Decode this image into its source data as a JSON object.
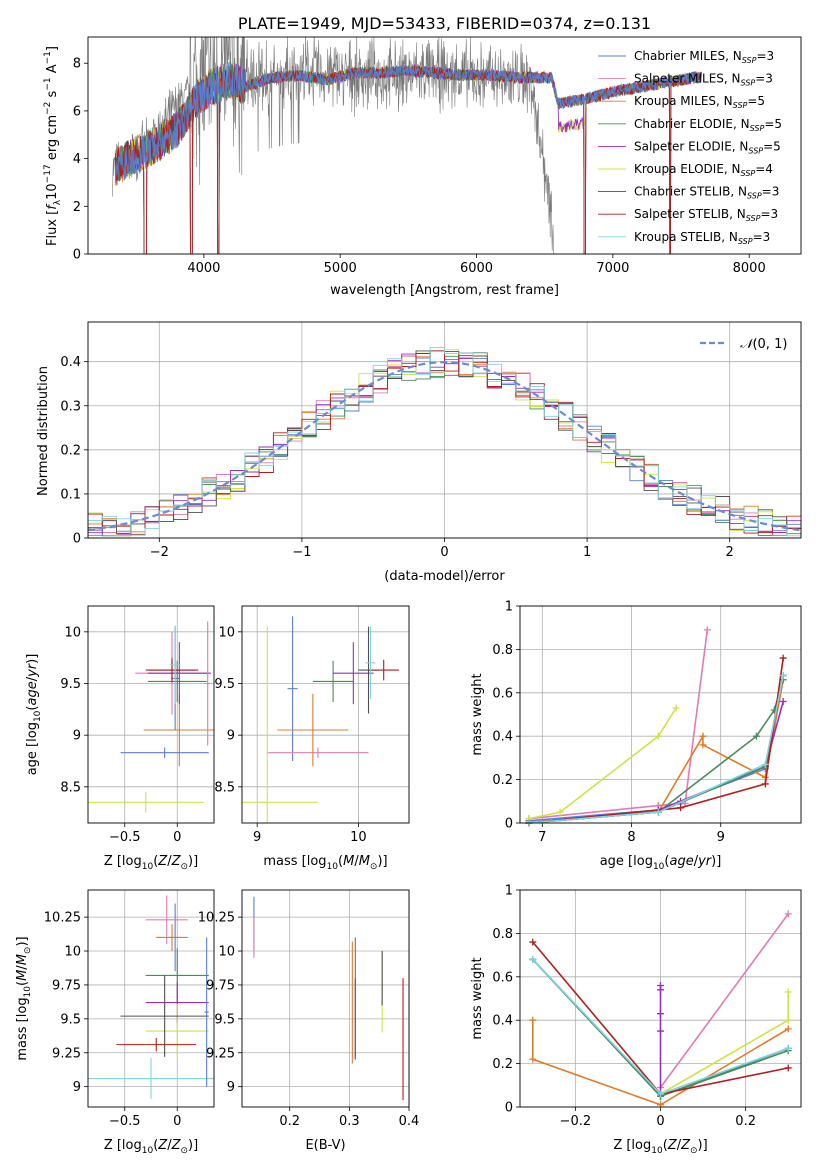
{
  "colors": [
    "#5b7fd0",
    "#e07bb5",
    "#e07b2a",
    "#4b8a5e",
    "#9a2fb5",
    "#cfe24a",
    "#505050",
    "#b01e1e",
    "#7ed3de"
  ],
  "chart_data": [
    {
      "id": "spectrum",
      "type": "line",
      "title": "PLATE=1949, MJD=53433, FIBERID=0374, z=0.131",
      "xlabel": "wavelength [Angstrom, rest frame]",
      "ylabel": "Flux [f_λ10^-17 erg cm^-2 s^-1 A^-1]",
      "xlim": [
        3150,
        8380
      ],
      "ylim": [
        0,
        9.1
      ],
      "xticks": [
        4000,
        5000,
        6000,
        7000,
        8000
      ],
      "yticks": [
        0,
        2,
        4,
        6,
        8
      ],
      "grid": false,
      "legend_position": "top-right",
      "legend": [
        "Chabrier MILES, N_SSP=3",
        "Salpeter MILES, N_SSP=3",
        "Kroupa MILES, N_SSP=5",
        "Chabrier ELODIE, N_SSP=5",
        "Salpeter ELODIE, N_SSP=5",
        "Kroupa ELODIE, N_SSP=4",
        "Chabrier STELIB, N_SSP=3",
        "Salpeter STELIB, N_SSP=3",
        "Kroupa STELIB, N_SSP=3"
      ],
      "model_continuum": {
        "x": [
          3350,
          3450,
          3550,
          3650,
          3800,
          3950,
          4050,
          4200,
          4300,
          4500,
          4700,
          4900,
          5100,
          5300,
          5500,
          5700,
          5900,
          6100,
          6300,
          6550,
          6600,
          6800,
          7000,
          7200,
          7400,
          7600
        ],
        "y": [
          3.6,
          4.0,
          4.3,
          4.6,
          5.2,
          6.5,
          7.0,
          7.3,
          7.0,
          7.4,
          7.5,
          7.3,
          7.6,
          7.6,
          7.7,
          7.6,
          7.5,
          7.5,
          7.4,
          7.4,
          6.3,
          6.5,
          6.8,
          7.0,
          7.2,
          7.4
        ]
      },
      "data_spectrum": {
        "x": [
          3300,
          3450,
          3600,
          3800,
          4000,
          4200,
          4400,
          4600,
          4800,
          5000,
          5200,
          5400,
          5600,
          5800,
          6000,
          6200,
          6400,
          6600
        ],
        "y": [
          3.5,
          4.0,
          4.6,
          6.2,
          7.4,
          7.6,
          7.3,
          7.6,
          7.7,
          7.5,
          7.5,
          7.4,
          7.6,
          7.5,
          7.4,
          7.4,
          7.3,
          0
        ]
      }
    },
    {
      "id": "residuals",
      "type": "line",
      "xlabel": "(data-model)/error",
      "ylabel": "Normed distribution",
      "xlim": [
        -2.5,
        2.5
      ],
      "ylim": [
        0,
        0.49
      ],
      "xticks": [
        -2,
        -1,
        0,
        1,
        2
      ],
      "yticks": [
        0.0,
        0.1,
        0.2,
        0.3,
        0.4
      ],
      "grid": true,
      "legend_position": "top-right",
      "legend": [
        "𝒩(0,1)"
      ],
      "bin_width": 0.1
    },
    {
      "id": "age-vs-z",
      "type": "scatter",
      "xlabel": "Z [log10(Z/Z⊙)]",
      "ylabel": "age  [log10(age/yr)]",
      "xlim": [
        -0.85,
        0.35
      ],
      "ylim": [
        8.15,
        10.25
      ],
      "xticks": [
        -0.5,
        0.0
      ],
      "yticks": [
        8.5,
        9.0,
        9.5,
        10.0
      ],
      "grid": true,
      "points": [
        {
          "x": -0.02,
          "y": 9.55,
          "xerr": 0.04,
          "yerr": 0.5
        },
        {
          "x": -0.05,
          "y": 9.6,
          "xerr": 0.35,
          "yerr": 0.4
        },
        {
          "x": 0.02,
          "y": 9.05,
          "xerr": 0.34,
          "yerr": 0.35
        },
        {
          "x": 0.0,
          "y": 9.52,
          "xerr": 0.28,
          "yerr": 0.2
        },
        {
          "x": 0.02,
          "y": 9.6,
          "xerr": 0.3,
          "yerr": 0.3
        },
        {
          "x": -0.3,
          "y": 8.35,
          "xerr": 0.55,
          "yerr": 0.1
        },
        {
          "x": -0.05,
          "y": 9.63,
          "xerr": 0.22,
          "yerr": 0.12
        },
        {
          "x": -0.05,
          "y": 9.63,
          "xerr": 0.25,
          "yerr": 0.1
        },
        {
          "x": -0.02,
          "y": 9.68,
          "xerr": 0.05,
          "yerr": 0.38
        },
        {
          "x": -0.12,
          "y": 8.83,
          "xerr": 0.42,
          "yerr": 0.05
        },
        {
          "x": 0.29,
          "y": 9.5,
          "xerr": 0.02,
          "yerr": 0.6
        }
      ]
    },
    {
      "id": "age-vs-mass",
      "type": "scatter",
      "xlabel": "mass [log10(M/M⊙)]",
      "ylabel": "",
      "xlim": [
        8.85,
        10.5
      ],
      "ylim": [
        8.15,
        10.25
      ],
      "xticks": [
        9,
        10
      ],
      "yticks": [
        8.5,
        9.0,
        9.5,
        10.0
      ],
      "grid": true,
      "points": [
        {
          "x": 9.35,
          "y": 9.45,
          "xerr": 0.05,
          "yerr": 0.7
        },
        {
          "x": 9.6,
          "y": 8.83,
          "xerr": 0.5,
          "yerr": 0.05
        },
        {
          "x": 9.55,
          "y": 9.05,
          "xerr": 0.35,
          "yerr": 0.35
        },
        {
          "x": 9.75,
          "y": 9.52,
          "xerr": 0.2,
          "yerr": 0.2
        },
        {
          "x": 9.95,
          "y": 9.6,
          "xerr": 0.2,
          "yerr": 0.3
        },
        {
          "x": 9.1,
          "y": 8.35,
          "xerr": 0.5,
          "yerr": 1.7
        },
        {
          "x": 10.1,
          "y": 9.63,
          "xerr": 0.1,
          "yerr": 0.42
        },
        {
          "x": 10.25,
          "y": 9.63,
          "xerr": 0.15,
          "yerr": 0.1
        },
        {
          "x": 10.12,
          "y": 9.7,
          "xerr": 0.05,
          "yerr": 0.35
        }
      ]
    },
    {
      "id": "weight-vs-age",
      "type": "line",
      "xlabel": "age  [log10(age/yr)]",
      "ylabel": "mass weight",
      "xlim": [
        6.75,
        9.9
      ],
      "ylim": [
        0,
        1.0
      ],
      "xticks": [
        7,
        8,
        9
      ],
      "yticks": [
        0.0,
        0.2,
        0.4,
        0.6,
        0.8,
        1.0
      ],
      "grid": true,
      "series": [
        {
          "x": [
            6.85,
            8.3,
            9.5,
            9.7
          ],
          "y": [
            0.01,
            0.06,
            0.25,
            0.68
          ]
        },
        {
          "x": [
            6.85,
            8.3,
            8.6,
            8.85
          ],
          "y": [
            0.02,
            0.08,
            0.09,
            0.89
          ]
        },
        {
          "x": [
            6.85,
            8.3,
            8.8,
            8.8,
            9.5,
            9.7
          ],
          "y": [
            0.0,
            0.05,
            0.4,
            0.36,
            0.21,
            0.66
          ]
        },
        {
          "x": [
            6.85,
            8.3,
            9.4,
            9.6,
            9.7
          ],
          "y": [
            0.0,
            0.05,
            0.4,
            0.52,
            0.66
          ]
        },
        {
          "x": [
            6.85,
            8.3,
            8.55,
            9.5,
            9.7
          ],
          "y": [
            0.0,
            0.06,
            0.1,
            0.26,
            0.56
          ]
        },
        {
          "x": [
            6.85,
            7.2,
            8.3,
            8.5
          ],
          "y": [
            0.02,
            0.05,
            0.4,
            0.53
          ]
        },
        {
          "x": [
            6.85,
            8.3,
            9.5,
            9.7
          ],
          "y": [
            0.0,
            0.05,
            0.26,
            0.68
          ]
        },
        {
          "x": [
            6.85,
            8.55,
            9.5,
            9.7
          ],
          "y": [
            0.0,
            0.07,
            0.18,
            0.76
          ]
        },
        {
          "x": [
            6.85,
            8.3,
            9.5,
            9.7
          ],
          "y": [
            0.0,
            0.05,
            0.27,
            0.68
          ]
        }
      ]
    },
    {
      "id": "mass-vs-z",
      "type": "scatter",
      "xlabel": "Z [log10(Z/Z⊙)]",
      "ylabel": "mass [log10(M/M⊙)]",
      "xlim": [
        -0.85,
        0.35
      ],
      "ylim": [
        8.85,
        10.45
      ],
      "xticks": [
        -0.5,
        0.0
      ],
      "yticks": [
        9.0,
        9.25,
        9.5,
        9.75,
        10.0,
        10.25
      ],
      "grid": true,
      "points": [
        {
          "x": -0.02,
          "y": 10.1,
          "xerr": 0.05,
          "yerr": 0.25
        },
        {
          "x": -0.1,
          "y": 10.23,
          "xerr": 0.2,
          "yerr": 0.18
        },
        {
          "x": -0.05,
          "y": 10.1,
          "xerr": 0.15,
          "yerr": 0.1
        },
        {
          "x": 0.0,
          "y": 9.82,
          "xerr": 0.3,
          "yerr": 0.2
        },
        {
          "x": 0.0,
          "y": 9.62,
          "xerr": 0.3,
          "yerr": 0.15
        },
        {
          "x": 0.0,
          "y": 9.41,
          "xerr": 0.3,
          "yerr": 0.2
        },
        {
          "x": -0.12,
          "y": 9.52,
          "xerr": 0.42,
          "yerr": 0.3
        },
        {
          "x": -0.2,
          "y": 9.31,
          "xerr": 0.38,
          "yerr": 0.05
        },
        {
          "x": -0.25,
          "y": 9.06,
          "xerr": 0.6,
          "yerr": 0.15
        },
        {
          "x": 0.28,
          "y": 9.55,
          "xerr": 0.02,
          "yerr": 0.55
        }
      ]
    },
    {
      "id": "mass-vs-ebv",
      "type": "scatter",
      "xlabel": "E(B-V)",
      "ylabel": "",
      "xlim": [
        0.12,
        0.4
      ],
      "ylim": [
        8.85,
        10.45
      ],
      "xticks": [
        0.2,
        0.3,
        0.4
      ],
      "yticks": [
        9.0,
        9.25,
        9.5,
        9.75,
        10.0,
        10.25
      ],
      "grid": true,
      "points": [
        {
          "x": 0.14,
          "y": 10.2,
          "yerr": 0.2
        },
        {
          "x": 0.14,
          "y": 10.1,
          "yerr": 0.15
        },
        {
          "x": 0.305,
          "y": 9.62,
          "yerr": 0.45
        },
        {
          "x": 0.31,
          "y": 9.65,
          "yerr": 0.45
        },
        {
          "x": 0.31,
          "y": 9.5,
          "yerr": 0.3
        },
        {
          "x": 0.355,
          "y": 9.7,
          "yerr": 0.3
        },
        {
          "x": 0.355,
          "y": 9.8,
          "yerr": 0.2
        },
        {
          "x": 0.39,
          "y": 9.35,
          "yerr": 0.45
        }
      ]
    },
    {
      "id": "weight-vs-z",
      "type": "line",
      "xlabel": "Z [log10(Z/Z⊙)]",
      "ylabel": "mass weight",
      "xlim": [
        -0.33,
        0.33
      ],
      "ylim": [
        0,
        1.0
      ],
      "xticks": [
        -0.2,
        0.0,
        0.2
      ],
      "yticks": [
        0.0,
        0.2,
        0.4,
        0.6,
        0.8,
        1.0
      ],
      "grid": true,
      "series": [
        {
          "x": [
            -0.3,
            0.0,
            0.3
          ],
          "y": [
            0.68,
            0.05,
            0.27
          ]
        },
        {
          "x": [
            0.0,
            0.3
          ],
          "y": [
            0.09,
            0.89
          ]
        },
        {
          "x": [
            -0.3,
            -0.3,
            0.0,
            0.3
          ],
          "y": [
            0.4,
            0.22,
            0.01,
            0.36
          ]
        },
        {
          "x": [
            -0.3,
            0.0,
            0.3
          ],
          "y": [
            0.68,
            0.05,
            0.26
          ]
        },
        {
          "x": [
            0.0,
            0.0,
            0.0,
            0.0,
            0.0
          ],
          "y": [
            0.56,
            0.43,
            0.35,
            0.06,
            0.54
          ]
        },
        {
          "x": [
            0.0,
            0.3,
            0.3
          ],
          "y": [
            0.06,
            0.4,
            0.53
          ]
        },
        {
          "x": [
            -0.3,
            0.0,
            0.3
          ],
          "y": [
            0.68,
            0.05,
            0.27
          ]
        },
        {
          "x": [
            -0.3,
            0.0,
            0.3
          ],
          "y": [
            0.76,
            0.06,
            0.18
          ]
        },
        {
          "x": [
            -0.3,
            0.0,
            0.3
          ],
          "y": [
            0.68,
            0.06,
            0.27
          ]
        }
      ]
    }
  ]
}
